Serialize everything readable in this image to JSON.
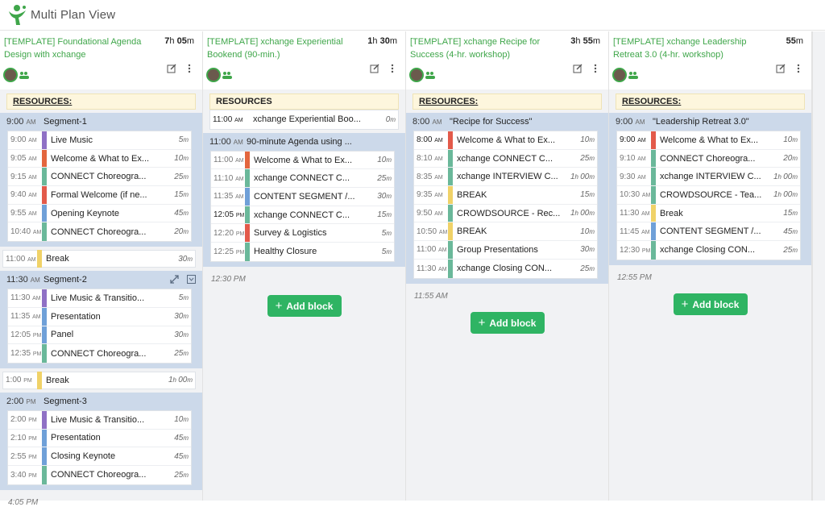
{
  "app": {
    "title": "Multi Plan View"
  },
  "colors": {
    "green": "#3fa64a",
    "purple": "#8f70c5",
    "orange": "#e3663e",
    "blue": "#6fa0d8",
    "teal": "#6ab89a",
    "red": "#e35a4a",
    "yellow": "#f0d268",
    "brand": "#2fb463"
  },
  "add_block_label": "Add block",
  "columns": [
    {
      "title": "[TEMPLATE] Foundational Agenda Design with xchange",
      "duration_h": "7",
      "duration_m": "05",
      "resources": "RESOURCES:",
      "segments": [
        {
          "time": "9:00",
          "ampm": "AM",
          "name": "Segment-1",
          "blocks": [
            {
              "time": "9:00",
              "ampm": "AM",
              "title": "Live Music",
              "dur": "5",
              "unit": "m",
              "color": "#8f70c5"
            },
            {
              "time": "9:05",
              "ampm": "AM",
              "title": "Welcome & What to Ex...",
              "dur": "10",
              "unit": "m",
              "color": "#e3663e"
            },
            {
              "time": "9:15",
              "ampm": "AM",
              "title": "CONNECT Choreogra...",
              "dur": "25",
              "unit": "m",
              "color": "#6ab89a"
            },
            {
              "time": "9:40",
              "ampm": "AM",
              "title": "Formal Welcome (if ne...",
              "dur": "15",
              "unit": "m",
              "color": "#e35a4a"
            },
            {
              "time": "9:55",
              "ampm": "AM",
              "title": "Opening Keynote",
              "dur": "45",
              "unit": "m",
              "color": "#6fa0d8"
            },
            {
              "time": "10:40",
              "ampm": "AM",
              "title": "CONNECT Choreogra...",
              "dur": "20",
              "unit": "m",
              "color": "#6ab89a"
            }
          ]
        }
      ],
      "break1": {
        "time": "11:00",
        "ampm": "AM",
        "title": "Break",
        "dur": "30",
        "unit": "m"
      },
      "segment2": {
        "time": "11:30",
        "ampm": "AM",
        "name": "Segment-2",
        "blocks": [
          {
            "time": "11:30",
            "ampm": "AM",
            "title": "Live Music & Transitio...",
            "dur": "5",
            "unit": "m",
            "color": "#8f70c5"
          },
          {
            "time": "11:35",
            "ampm": "AM",
            "title": "Presentation",
            "dur": "30",
            "unit": "m",
            "color": "#6fa0d8"
          },
          {
            "time": "12:05",
            "ampm": "PM",
            "title": "Panel",
            "dur": "30",
            "unit": "m",
            "color": "#6fa0d8"
          },
          {
            "time": "12:35",
            "ampm": "PM",
            "title": "CONNECT Choreogra...",
            "dur": "25",
            "unit": "m",
            "color": "#6ab89a"
          }
        ]
      },
      "break2": {
        "time": "1:00",
        "ampm": "PM",
        "title": "Break",
        "dur_h": "1",
        "dur": "00",
        "unit": "m"
      },
      "segment3": {
        "time": "2:00",
        "ampm": "PM",
        "name": "Segment-3",
        "blocks": [
          {
            "time": "2:00",
            "ampm": "PM",
            "title": "Live Music & Transitio...",
            "dur": "10",
            "unit": "m",
            "color": "#8f70c5"
          },
          {
            "time": "2:10",
            "ampm": "PM",
            "title": "Presentation",
            "dur": "45",
            "unit": "m",
            "color": "#6fa0d8"
          },
          {
            "time": "2:55",
            "ampm": "PM",
            "title": "Closing Keynote",
            "dur": "45",
            "unit": "m",
            "color": "#6fa0d8"
          },
          {
            "time": "3:40",
            "ampm": "PM",
            "title": "CONNECT Choreogra...",
            "dur": "25",
            "unit": "m",
            "color": "#6ab89a"
          }
        ]
      },
      "end_time": "4:05 PM"
    },
    {
      "title": "[TEMPLATE] xchange Experiential Bookend (90-min.)",
      "duration_h": "1",
      "duration_m": "30",
      "resources": "RESOURCES",
      "resource_item": {
        "time": "11:00",
        "ampm": "AM",
        "title": "xchange Experiential Boo...",
        "dur": "0",
        "unit": "m"
      },
      "segment": {
        "time": "11:00",
        "ampm": "AM",
        "name": "90-minute Agenda using ...",
        "blocks": [
          {
            "time": "11:00",
            "ampm": "AM",
            "title": "Welcome & What to Ex...",
            "dur": "10",
            "unit": "m",
            "color": "#e3663e"
          },
          {
            "time": "11:10",
            "ampm": "AM",
            "title": "xchange CONNECT C...",
            "dur": "25",
            "unit": "m",
            "color": "#6ab89a"
          },
          {
            "time": "11:35",
            "ampm": "AM",
            "title": "CONTENT SEGMENT /...",
            "dur": "30",
            "unit": "m",
            "color": "#6fa0d8"
          },
          {
            "time": "12:05",
            "ampm": "PM",
            "title": "xchange CONNECT C...",
            "dur": "15",
            "unit": "m",
            "color": "#6ab89a",
            "dark": true
          },
          {
            "time": "12:20",
            "ampm": "PM",
            "title": "Survey & Logistics",
            "dur": "5",
            "unit": "m",
            "color": "#e35a4a"
          },
          {
            "time": "12:25",
            "ampm": "PM",
            "title": "Healthy Closure",
            "dur": "5",
            "unit": "m",
            "color": "#6ab89a"
          }
        ]
      },
      "end_time": "12:30 PM"
    },
    {
      "title": "[TEMPLATE] xchange Recipe for Success (4-hr. workshop)",
      "duration_h": "3",
      "duration_m": "55",
      "resources": "RESOURCES:",
      "segment": {
        "time": "8:00",
        "ampm": "AM",
        "name": "\"Recipe for Success\"",
        "blocks": [
          {
            "time": "8:00",
            "ampm": "AM",
            "title": "Welcome & What to Ex...",
            "dur": "10",
            "unit": "m",
            "color": "#e35a4a",
            "dark": true
          },
          {
            "time": "8:10",
            "ampm": "AM",
            "title": "xchange CONNECT C...",
            "dur": "25",
            "unit": "m",
            "color": "#6ab89a"
          },
          {
            "time": "8:35",
            "ampm": "AM",
            "title": "xchange INTERVIEW C...",
            "dur_h": "1",
            "dur": "00",
            "unit": "m",
            "color": "#6ab89a"
          },
          {
            "time": "9:35",
            "ampm": "AM",
            "title": "BREAK",
            "dur": "15",
            "unit": "m",
            "color": "#f0d268"
          },
          {
            "time": "9:50",
            "ampm": "AM",
            "title": "CROWDSOURCE - Rec...",
            "dur_h": "1",
            "dur": "00",
            "unit": "m",
            "color": "#6ab89a"
          },
          {
            "time": "10:50",
            "ampm": "AM",
            "title": "BREAK",
            "dur": "10",
            "unit": "m",
            "color": "#f0d268"
          },
          {
            "time": "11:00",
            "ampm": "AM",
            "title": "Group Presentations",
            "dur": "30",
            "unit": "m",
            "color": "#6ab89a"
          },
          {
            "time": "11:30",
            "ampm": "AM",
            "title": "xchange Closing CON...",
            "dur": "25",
            "unit": "m",
            "color": "#6ab89a"
          }
        ]
      },
      "end_time": "11:55 AM"
    },
    {
      "title": "[TEMPLATE] xchange Leadership Retreat 3.0 (4-hr. workshop)",
      "duration_h": "",
      "duration_m": "55",
      "resources": "RESOURCES:",
      "segment": {
        "time": "9:00",
        "ampm": "AM",
        "name": "\"Leadership Retreat 3.0\"",
        "blocks": [
          {
            "time": "9:00",
            "ampm": "AM",
            "title": "Welcome & What to Ex...",
            "dur": "10",
            "unit": "m",
            "color": "#e35a4a",
            "dark": true
          },
          {
            "time": "9:10",
            "ampm": "AM",
            "title": "CONNECT Choreogra...",
            "dur": "20",
            "unit": "m",
            "color": "#6ab89a"
          },
          {
            "time": "9:30",
            "ampm": "AM",
            "title": "xchange INTERVIEW C...",
            "dur_h": "1",
            "dur": "00",
            "unit": "m",
            "color": "#6ab89a"
          },
          {
            "time": "10:30",
            "ampm": "AM",
            "title": "CROWDSOURCE - Tea...",
            "dur_h": "1",
            "dur": "00",
            "unit": "m",
            "color": "#6ab89a"
          },
          {
            "time": "11:30",
            "ampm": "AM",
            "title": "Break",
            "dur": "15",
            "unit": "m",
            "color": "#f0d268"
          },
          {
            "time": "11:45",
            "ampm": "AM",
            "title": "CONTENT SEGMENT /...",
            "dur": "45",
            "unit": "m",
            "color": "#6fa0d8"
          },
          {
            "time": "12:30",
            "ampm": "PM",
            "title": "xchange Closing CON...",
            "dur": "25",
            "unit": "m",
            "color": "#6ab89a"
          }
        ]
      },
      "end_time": "12:55 PM"
    }
  ]
}
